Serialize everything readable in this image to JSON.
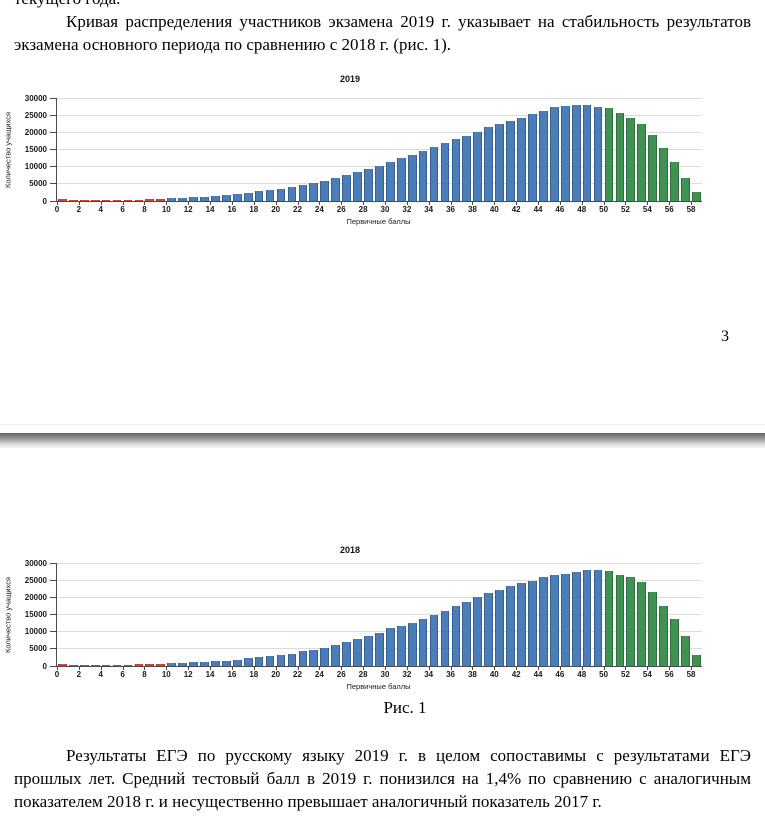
{
  "document": {
    "top_fragment": "текущего года.",
    "paragraph_1": "Кривая распределения участников экзамена 2019 г. указывает на стабильность результатов экзамена основного периода по сравнению с 2018 г. (рис. 1).",
    "page_number": "3",
    "figure_caption": "Рис. 1",
    "paragraph_2": "Результаты ЕГЭ по русскому языку 2019 г. в целом сопоставимы с результатами ЕГЭ прошлых лет. Средний тестовый балл в 2019 г. понизился на 1,4% по сравнению с аналогичным показателем 2018 г. и несущественно превышает аналогичный показатель 2017 г."
  },
  "colors": {
    "bar_blue": "#4b7db8",
    "bar_blue_border": "#38618f",
    "bar_green": "#3f9251",
    "bar_green_border": "#2e6f3e",
    "bar_red": "#d6402e",
    "bar_red_border": "#a83224",
    "gridline": "#dcdcdc",
    "axis": "#4a4a4a"
  },
  "chart_data": [
    {
      "type": "bar",
      "title": "2019",
      "xlabel": "Первичные баллы",
      "ylabel": "Количество учащихся",
      "ylim": [
        0,
        30000
      ],
      "yticks": [
        0,
        5000,
        10000,
        15000,
        20000,
        25000,
        30000
      ],
      "xtick_step": 2,
      "categories": [
        0,
        1,
        2,
        3,
        4,
        5,
        6,
        7,
        8,
        9,
        10,
        11,
        12,
        13,
        14,
        15,
        16,
        17,
        18,
        19,
        20,
        21,
        22,
        23,
        24,
        25,
        26,
        27,
        28,
        29,
        30,
        31,
        32,
        33,
        34,
        35,
        36,
        37,
        38,
        39,
        40,
        41,
        42,
        43,
        44,
        45,
        46,
        47,
        48,
        49,
        50,
        51,
        52,
        53,
        54,
        55,
        56,
        57,
        58
      ],
      "values": [
        500,
        200,
        250,
        280,
        320,
        360,
        400,
        450,
        500,
        550,
        800,
        950,
        1050,
        1200,
        1450,
        1700,
        2050,
        2400,
        2800,
        3200,
        3600,
        4050,
        4650,
        5250,
        5950,
        6750,
        7650,
        8450,
        9350,
        10350,
        11350,
        12450,
        13450,
        14550,
        15650,
        16850,
        17950,
        19050,
        20250,
        21450,
        22400,
        23300,
        24200,
        25400,
        26300,
        27400,
        27800,
        27850,
        28000,
        27500,
        27100,
        25700,
        24200,
        22400,
        19300,
        15500,
        11400,
        6800,
        2700
      ],
      "segments": [
        {
          "from": 0,
          "to": 9,
          "color": "red"
        },
        {
          "from": 10,
          "to": 49,
          "color": "blue"
        },
        {
          "from": 50,
          "to": 58,
          "color": "green"
        }
      ],
      "grid": "horizontal",
      "legend": "none"
    },
    {
      "type": "bar",
      "title": "2018",
      "xlabel": "Первичные баллы",
      "ylabel": "Количество учащихся",
      "ylim": [
        0,
        30000
      ],
      "yticks": [
        0,
        5000,
        10000,
        15000,
        20000,
        25000,
        30000
      ],
      "xtick_step": 2,
      "categories": [
        0,
        1,
        2,
        3,
        4,
        5,
        6,
        7,
        8,
        9,
        10,
        11,
        12,
        13,
        14,
        15,
        16,
        17,
        18,
        19,
        20,
        21,
        22,
        23,
        24,
        25,
        26,
        27,
        28,
        29,
        30,
        31,
        32,
        33,
        34,
        35,
        36,
        37,
        38,
        39,
        40,
        41,
        42,
        43,
        44,
        45,
        46,
        47,
        48,
        49,
        50,
        51,
        52,
        53,
        54,
        55,
        56,
        57,
        58
      ],
      "values": [
        550,
        200,
        250,
        280,
        320,
        350,
        420,
        480,
        540,
        600,
        800,
        950,
        1100,
        1250,
        1400,
        1600,
        1900,
        2200,
        2500,
        2900,
        3250,
        3650,
        4250,
        4750,
        5400,
        6200,
        7050,
        7850,
        8700,
        9750,
        11000,
        11700,
        12650,
        13650,
        14950,
        15950,
        17350,
        18750,
        20100,
        21300,
        22250,
        23300,
        24300,
        24900,
        25800,
        26450,
        26950,
        27500,
        27900,
        27950,
        27600,
        26600,
        25900,
        24600,
        21600,
        17600,
        13600,
        8700,
        3200
      ],
      "segments": [
        {
          "from": 0,
          "to": 9,
          "color": "red"
        },
        {
          "from": 10,
          "to": 49,
          "color": "blue"
        },
        {
          "from": 50,
          "to": 58,
          "color": "green"
        }
      ],
      "grid": "horizontal",
      "legend": "none"
    }
  ]
}
